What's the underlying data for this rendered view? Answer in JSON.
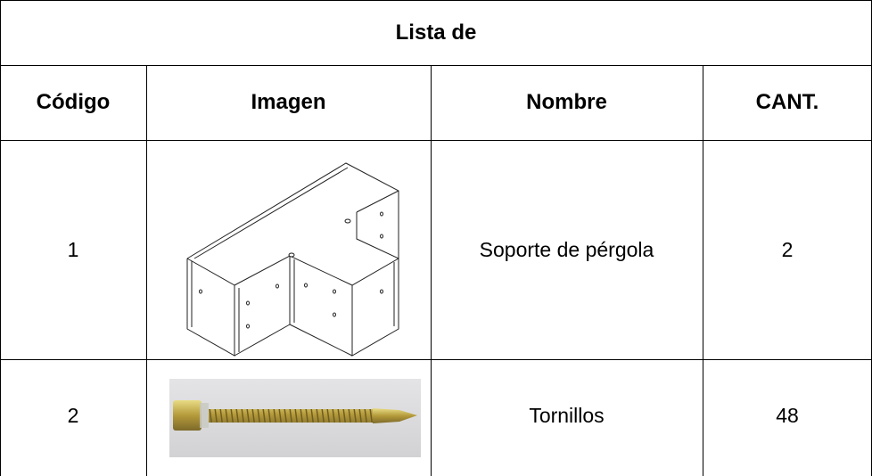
{
  "table": {
    "title": "Lista de",
    "header": [
      "Código",
      "Imagen",
      "Nombre",
      "CANT."
    ],
    "rows": [
      [
        "1",
        "Soporte de pérgola",
        "2"
      ],
      [
        "2",
        "Tornillos",
        "48"
      ]
    ]
  }
}
